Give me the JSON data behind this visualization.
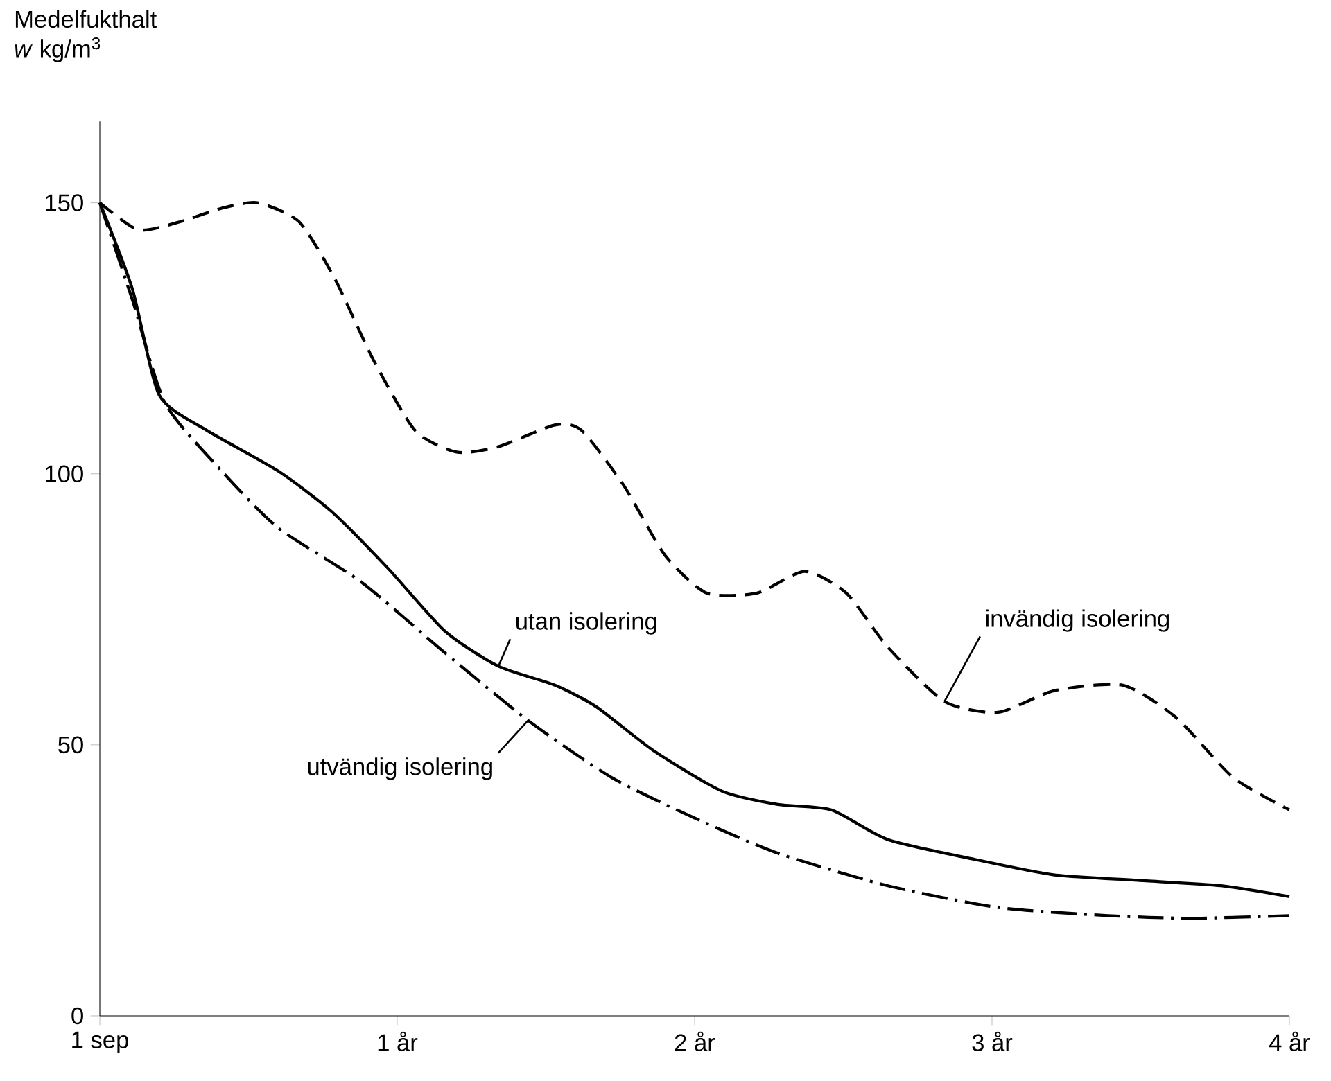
{
  "chart_data": {
    "type": "line",
    "ylabel": "Medelfukthalt",
    "xlim": [
      0,
      4
    ],
    "ylim": [
      0,
      165
    ],
    "xticks": [
      {
        "value": 0,
        "label": "1 sep"
      },
      {
        "value": 1,
        "label": "1 år"
      },
      {
        "value": 2,
        "label": "2 år"
      },
      {
        "value": 3,
        "label": "3 år"
      },
      {
        "value": 4,
        "label": "4 år"
      }
    ],
    "yticks": [
      0,
      50,
      100,
      150
    ],
    "grid": false,
    "marker": "none",
    "series": [
      {
        "color": "#000000",
        "line_style": "dashed",
        "x": [
          0,
          0.13,
          0.27,
          0.41,
          0.53,
          0.67,
          0.79,
          0.92,
          1.06,
          1.2,
          1.34,
          1.53,
          1.62,
          1.76,
          1.9,
          2.04,
          2.21,
          2.37,
          2.51,
          2.65,
          2.84,
          3.02,
          3.21,
          3.44,
          3.62,
          3.81,
          4.0
        ],
        "values": [
          150,
          145,
          146.5,
          149,
          150,
          146.5,
          136,
          121,
          108,
          104,
          105,
          109,
          108,
          98,
          85,
          78,
          78,
          82,
          78,
          68,
          58,
          56,
          60,
          61,
          55,
          44,
          38
        ]
      },
      {
        "color": "#000000",
        "line_style": "solid",
        "x": [
          0,
          0.11,
          0.2,
          0.36,
          0.6,
          0.78,
          0.97,
          1.16,
          1.34,
          1.53,
          1.67,
          1.86,
          2.09,
          2.28,
          2.46,
          2.65,
          2.93,
          3.21,
          3.49,
          3.77,
          4.0
        ],
        "values": [
          150,
          134,
          114.5,
          108,
          100.5,
          93,
          82.5,
          71,
          64.5,
          61,
          57,
          49,
          41.5,
          39,
          38,
          32.5,
          29,
          26,
          25,
          24,
          22
        ]
      },
      {
        "color": "#000000",
        "line_style": "dashdot",
        "x": [
          0,
          0.11,
          0.22,
          0.41,
          0.6,
          0.88,
          1.16,
          1.44,
          1.72,
          2.0,
          2.28,
          2.65,
          3.02,
          3.39,
          3.67,
          4.0
        ],
        "values": [
          150,
          132,
          113,
          100.5,
          90,
          80,
          67,
          54.5,
          44,
          36.5,
          30,
          24,
          20,
          18.5,
          18,
          18.5
        ]
      }
    ],
    "annotations": [
      {
        "text": "utan isolering",
        "x": 1.34,
        "y": 64.5
      },
      {
        "text": "invändig isolering",
        "x": 2.84,
        "y": 58
      },
      {
        "text": "utvändig isolering",
        "x": 1.44,
        "y": 54.5
      },
      "*w*    kg/m$^{3}$"
    ]
  }
}
